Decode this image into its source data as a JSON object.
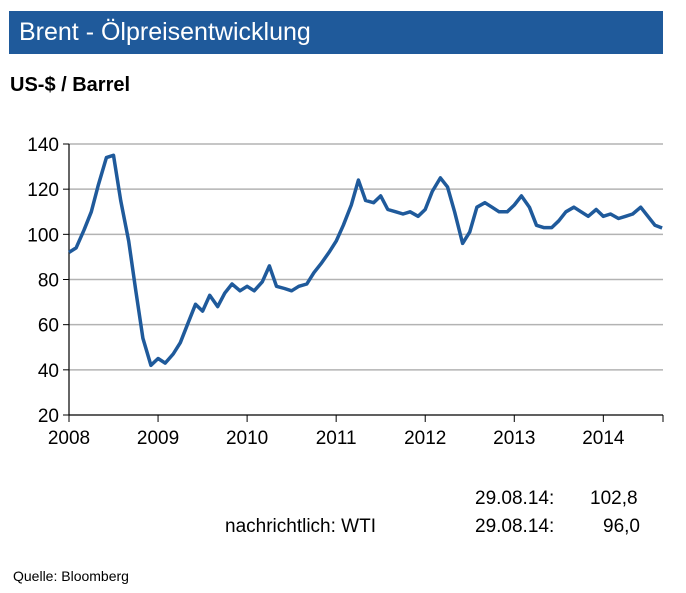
{
  "header": {
    "title": "Brent - Ölpreisentwicklung",
    "unit": "US-$ / Barrel"
  },
  "notes": {
    "brent_date": "29.08.14:",
    "brent_value": "102,8",
    "wti_label": "nachrichtlich: WTI",
    "wti_date": "29.08.14:",
    "wti_value": "96,0"
  },
  "source": "Quelle:  Bloomberg",
  "chart_data": {
    "type": "line",
    "title": "",
    "xlabel": "",
    "ylabel": "",
    "ylim": [
      20,
      140
    ],
    "yticks": [
      20,
      40,
      60,
      80,
      100,
      120,
      140
    ],
    "xlim": [
      2008.0,
      2014.67
    ],
    "xticks": [
      "2008",
      "2009",
      "2010",
      "2011",
      "2012",
      "2013",
      "2014"
    ],
    "grid": true,
    "line_color": "#1f5a9b",
    "series": [
      {
        "x": [
          2008.0,
          2008.08,
          2008.17,
          2008.25,
          2008.33,
          2008.42,
          2008.5,
          2008.58,
          2008.67,
          2008.75,
          2008.83,
          2008.92,
          2009.0,
          2009.08,
          2009.17,
          2009.25,
          2009.33,
          2009.42,
          2009.5,
          2009.58,
          2009.67,
          2009.75,
          2009.83,
          2009.92,
          2010.0,
          2010.08,
          2010.17,
          2010.25,
          2010.33,
          2010.42,
          2010.5,
          2010.58,
          2010.67,
          2010.75,
          2010.83,
          2010.92,
          2011.0,
          2011.08,
          2011.17,
          2011.25,
          2011.33,
          2011.42,
          2011.5,
          2011.58,
          2011.67,
          2011.75,
          2011.83,
          2011.92,
          2012.0,
          2012.08,
          2012.17,
          2012.25,
          2012.33,
          2012.42,
          2012.5,
          2012.58,
          2012.67,
          2012.75,
          2012.83,
          2012.92,
          2013.0,
          2013.08,
          2013.17,
          2013.25,
          2013.33,
          2013.42,
          2013.5,
          2013.58,
          2013.67,
          2013.75,
          2013.83,
          2013.92,
          2014.0,
          2014.08,
          2014.17,
          2014.25,
          2014.33,
          2014.42,
          2014.5,
          2014.58,
          2014.66
        ],
        "y": [
          92,
          94,
          102,
          110,
          122,
          134,
          135,
          115,
          97,
          75,
          54,
          42,
          45,
          43,
          47,
          52,
          60,
          69,
          66,
          73,
          68,
          74,
          78,
          75,
          77,
          75,
          79,
          86,
          77,
          76,
          75,
          77,
          78,
          83,
          87,
          92,
          97,
          104,
          113,
          124,
          115,
          114,
          117,
          111,
          110,
          109,
          110,
          108,
          111,
          119,
          125,
          121,
          110,
          96,
          101,
          112,
          114,
          112,
          110,
          110,
          113,
          117,
          112,
          104,
          103,
          103,
          106,
          110,
          112,
          110,
          108,
          111,
          108,
          109,
          107,
          108,
          109,
          112,
          108,
          104,
          102.8
        ]
      }
    ]
  }
}
